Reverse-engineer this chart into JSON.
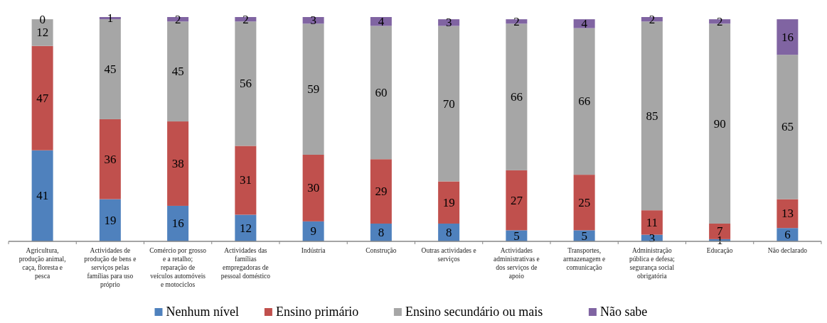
{
  "chart_data": {
    "type": "bar",
    "stacked": true,
    "data_labels": true,
    "legend": "bottom",
    "categories": [
      "Agricultura, produção animal, caça, floresta e pesca",
      "Actividades de produção de bens e serviços pelas famílias para uso próprio",
      "Comércio por grosso e a retalho; reparação de veículos automóveis e  motociclos",
      "Actividades das famílias empregadoras de pessoal doméstico",
      "Indústria",
      "Construção",
      "Outras actividades e serviços",
      "Actividades administrativas e dos serviços de apoio",
      "Transportes, armazenagem e comunicação",
      "Administração pública e defesa; segurança social obrigatória",
      "Educação",
      "Não declarado"
    ],
    "series": [
      {
        "name": "Nenhum nível",
        "color": "#4f81bd",
        "values": [
          41,
          19,
          16,
          12,
          9,
          8,
          8,
          5,
          5,
          3,
          1,
          6
        ]
      },
      {
        "name": "Ensino primário",
        "color": "#c0504d",
        "values": [
          47,
          36,
          38,
          31,
          30,
          29,
          19,
          27,
          25,
          11,
          7,
          13
        ]
      },
      {
        "name": "Ensino secundário ou mais",
        "color": "#a6a6a6",
        "values": [
          12,
          45,
          45,
          56,
          59,
          60,
          70,
          66,
          66,
          85,
          90,
          65
        ]
      },
      {
        "name": "Não sabe",
        "color": "#8064a2",
        "values": [
          0,
          1,
          2,
          2,
          3,
          4,
          3,
          2,
          4,
          2,
          2,
          16
        ]
      }
    ]
  }
}
